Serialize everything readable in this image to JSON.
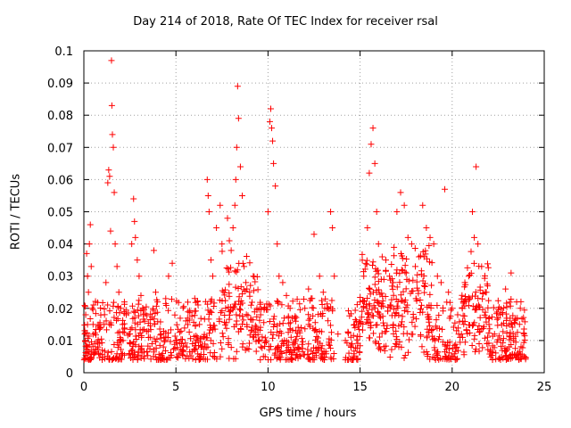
{
  "chart_data": {
    "type": "scatter",
    "title": "Day 214 of 2018, Rate Of TEC Index for receiver rsal",
    "xlabel": "GPS time / hours",
    "ylabel": "ROTI / TECUs",
    "xlim": [
      0,
      25
    ],
    "ylim": [
      0,
      0.1
    ],
    "xticks": [
      "0",
      "5",
      "10",
      "15",
      "20",
      "25"
    ],
    "yticks": [
      "0",
      "0.01",
      "0.02",
      "0.03",
      "0.04",
      "0.05",
      "0.06",
      "0.07",
      "0.08",
      "0.09",
      "0.1"
    ],
    "grid": true,
    "marker": "+",
    "color": "#ff0000",
    "series": [
      {
        "name": "ROTI",
        "points": [
          [
            0.05,
            0.012
          ],
          [
            0.1,
            0.018
          ],
          [
            0.15,
            0.037
          ],
          [
            0.2,
            0.03
          ],
          [
            0.25,
            0.025
          ],
          [
            0.3,
            0.04
          ],
          [
            0.35,
            0.046
          ],
          [
            0.4,
            0.033
          ],
          [
            0.45,
            0.02
          ],
          [
            0.5,
            0.015
          ],
          [
            0.2,
            0.008
          ],
          [
            0.4,
            0.007
          ],
          [
            0.6,
            0.009
          ],
          [
            0.8,
            0.006
          ],
          [
            1.0,
            0.007
          ],
          [
            1.1,
            0.015
          ],
          [
            1.2,
            0.028
          ],
          [
            1.3,
            0.059
          ],
          [
            1.35,
            0.063
          ],
          [
            1.4,
            0.061
          ],
          [
            1.45,
            0.044
          ],
          [
            1.5,
            0.097
          ],
          [
            1.52,
            0.083
          ],
          [
            1.55,
            0.074
          ],
          [
            1.6,
            0.07
          ],
          [
            1.65,
            0.056
          ],
          [
            1.7,
            0.04
          ],
          [
            1.8,
            0.033
          ],
          [
            1.9,
            0.025
          ],
          [
            2.0,
            0.02
          ],
          [
            2.1,
            0.015
          ],
          [
            2.2,
            0.022
          ],
          [
            2.3,
            0.018
          ],
          [
            2.5,
            0.012
          ],
          [
            2.6,
            0.04
          ],
          [
            2.7,
            0.054
          ],
          [
            2.75,
            0.047
          ],
          [
            2.8,
            0.042
          ],
          [
            2.9,
            0.035
          ],
          [
            3.0,
            0.03
          ],
          [
            3.1,
            0.024
          ],
          [
            3.2,
            0.02
          ],
          [
            3.3,
            0.016
          ],
          [
            3.5,
            0.013
          ],
          [
            3.6,
            0.011
          ],
          [
            3.7,
            0.009
          ],
          [
            3.8,
            0.038
          ],
          [
            3.9,
            0.025
          ],
          [
            4.0,
            0.022
          ],
          [
            4.2,
            0.012
          ],
          [
            4.4,
            0.01
          ],
          [
            4.6,
            0.03
          ],
          [
            4.8,
            0.034
          ],
          [
            5.0,
            0.01
          ],
          [
            5.3,
            0.009
          ],
          [
            5.6,
            0.008
          ],
          [
            5.9,
            0.009
          ],
          [
            6.2,
            0.01
          ],
          [
            6.5,
            0.011
          ],
          [
            6.7,
            0.06
          ],
          [
            6.75,
            0.055
          ],
          [
            6.8,
            0.05
          ],
          [
            6.9,
            0.035
          ],
          [
            7.0,
            0.03
          ],
          [
            7.2,
            0.045
          ],
          [
            7.4,
            0.052
          ],
          [
            7.5,
            0.04
          ],
          [
            7.6,
            0.025
          ],
          [
            7.7,
            0.02
          ],
          [
            7.8,
            0.048
          ],
          [
            7.9,
            0.041
          ],
          [
            8.0,
            0.038
          ],
          [
            8.1,
            0.045
          ],
          [
            8.2,
            0.052
          ],
          [
            8.25,
            0.06
          ],
          [
            8.3,
            0.07
          ],
          [
            8.35,
            0.089
          ],
          [
            8.4,
            0.079
          ],
          [
            8.5,
            0.064
          ],
          [
            8.6,
            0.055
          ],
          [
            8.7,
            0.033
          ],
          [
            8.8,
            0.028
          ],
          [
            9.0,
            0.025
          ],
          [
            9.2,
            0.03
          ],
          [
            9.4,
            0.02
          ],
          [
            9.6,
            0.018
          ],
          [
            9.8,
            0.02
          ],
          [
            10.0,
            0.05
          ],
          [
            10.1,
            0.078
          ],
          [
            10.15,
            0.082
          ],
          [
            10.2,
            0.076
          ],
          [
            10.25,
            0.072
          ],
          [
            10.3,
            0.065
          ],
          [
            10.4,
            0.058
          ],
          [
            10.5,
            0.04
          ],
          [
            10.6,
            0.03
          ],
          [
            10.8,
            0.028
          ],
          [
            11.0,
            0.024
          ],
          [
            11.2,
            0.02
          ],
          [
            11.5,
            0.016
          ],
          [
            11.8,
            0.014
          ],
          [
            12.0,
            0.02
          ],
          [
            12.2,
            0.026
          ],
          [
            12.5,
            0.043
          ],
          [
            12.8,
            0.03
          ],
          [
            13.0,
            0.025
          ],
          [
            13.2,
            0.02
          ],
          [
            13.4,
            0.05
          ],
          [
            13.5,
            0.045
          ],
          [
            13.6,
            0.03
          ],
          [
            13.8,
            0.012
          ],
          [
            14.2,
            0.01
          ],
          [
            14.5,
            0.011
          ],
          [
            14.8,
            0.016
          ],
          [
            15.0,
            0.022
          ],
          [
            15.2,
            0.03
          ],
          [
            15.4,
            0.045
          ],
          [
            15.5,
            0.062
          ],
          [
            15.6,
            0.071
          ],
          [
            15.7,
            0.076
          ],
          [
            15.8,
            0.065
          ],
          [
            15.9,
            0.05
          ],
          [
            16.0,
            0.04
          ],
          [
            16.2,
            0.036
          ],
          [
            16.4,
            0.035
          ],
          [
            16.6,
            0.03
          ],
          [
            16.8,
            0.028
          ],
          [
            17.0,
            0.05
          ],
          [
            17.2,
            0.056
          ],
          [
            17.4,
            0.052
          ],
          [
            17.6,
            0.042
          ],
          [
            17.8,
            0.04
          ],
          [
            18.0,
            0.033
          ],
          [
            18.2,
            0.036
          ],
          [
            18.4,
            0.052
          ],
          [
            18.6,
            0.045
          ],
          [
            18.8,
            0.042
          ],
          [
            19.0,
            0.04
          ],
          [
            19.2,
            0.03
          ],
          [
            19.4,
            0.028
          ],
          [
            19.6,
            0.057
          ],
          [
            19.8,
            0.025
          ],
          [
            20.0,
            0.02
          ],
          [
            20.3,
            0.018
          ],
          [
            20.6,
            0.022
          ],
          [
            20.9,
            0.03
          ],
          [
            21.1,
            0.05
          ],
          [
            21.2,
            0.042
          ],
          [
            21.3,
            0.064
          ],
          [
            21.4,
            0.04
          ],
          [
            21.6,
            0.033
          ],
          [
            21.8,
            0.025
          ],
          [
            22.0,
            0.015
          ],
          [
            22.3,
            0.012
          ],
          [
            22.6,
            0.018
          ],
          [
            22.9,
            0.026
          ],
          [
            23.2,
            0.031
          ],
          [
            23.5,
            0.022
          ],
          [
            23.7,
            0.02
          ],
          [
            23.9,
            0.012
          ]
        ],
        "baseline_band": [
          0.004,
          0.016
        ]
      }
    ]
  }
}
